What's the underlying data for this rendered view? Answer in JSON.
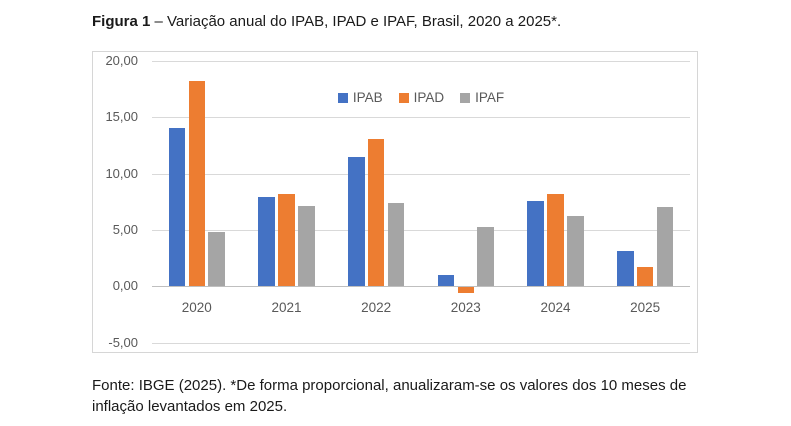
{
  "figure": {
    "title_bold": "Figura 1",
    "title_rest": " – Variação anual do IPAB, IPAD e IPAF, Brasil, 2020 a 2025*.",
    "footnote": "Fonte: IBGE (2025). *De forma proporcional, anualizaram-se os valores dos 10 meses de inflação levantados em 2025."
  },
  "colors": {
    "ipab": "#4472C4",
    "ipad": "#ED7D31",
    "ipaf": "#A5A5A5",
    "gridline": "#D9D9D9",
    "zero_axis": "#BFBFBF",
    "tick_label": "#595959",
    "chart_border": "#D6D6D6"
  },
  "chart_data": {
    "type": "bar",
    "title": "",
    "xlabel": "",
    "ylabel": "",
    "categories": [
      "2020",
      "2021",
      "2022",
      "2023",
      "2024",
      "2025"
    ],
    "series": [
      {
        "name": "IPAB",
        "color": "#4472C4",
        "values": [
          14.1,
          7.9,
          11.5,
          1.0,
          7.6,
          3.1
        ]
      },
      {
        "name": "IPAD",
        "color": "#ED7D31",
        "values": [
          18.2,
          8.2,
          13.1,
          -0.5,
          8.2,
          1.7
        ]
      },
      {
        "name": "IPAF",
        "color": "#A5A5A5",
        "values": [
          4.8,
          7.1,
          7.4,
          5.3,
          6.2,
          7.0
        ]
      }
    ],
    "ylim": [
      -5,
      20
    ],
    "ytick_interval": 5,
    "ytick_labels": [
      "20,00",
      "15,00",
      "10,00",
      "5,00",
      "0,00",
      "-5,00"
    ],
    "grid": true,
    "legend_position": "top-center",
    "legend_entries": [
      "IPAB",
      "IPAD",
      "IPAF"
    ]
  }
}
